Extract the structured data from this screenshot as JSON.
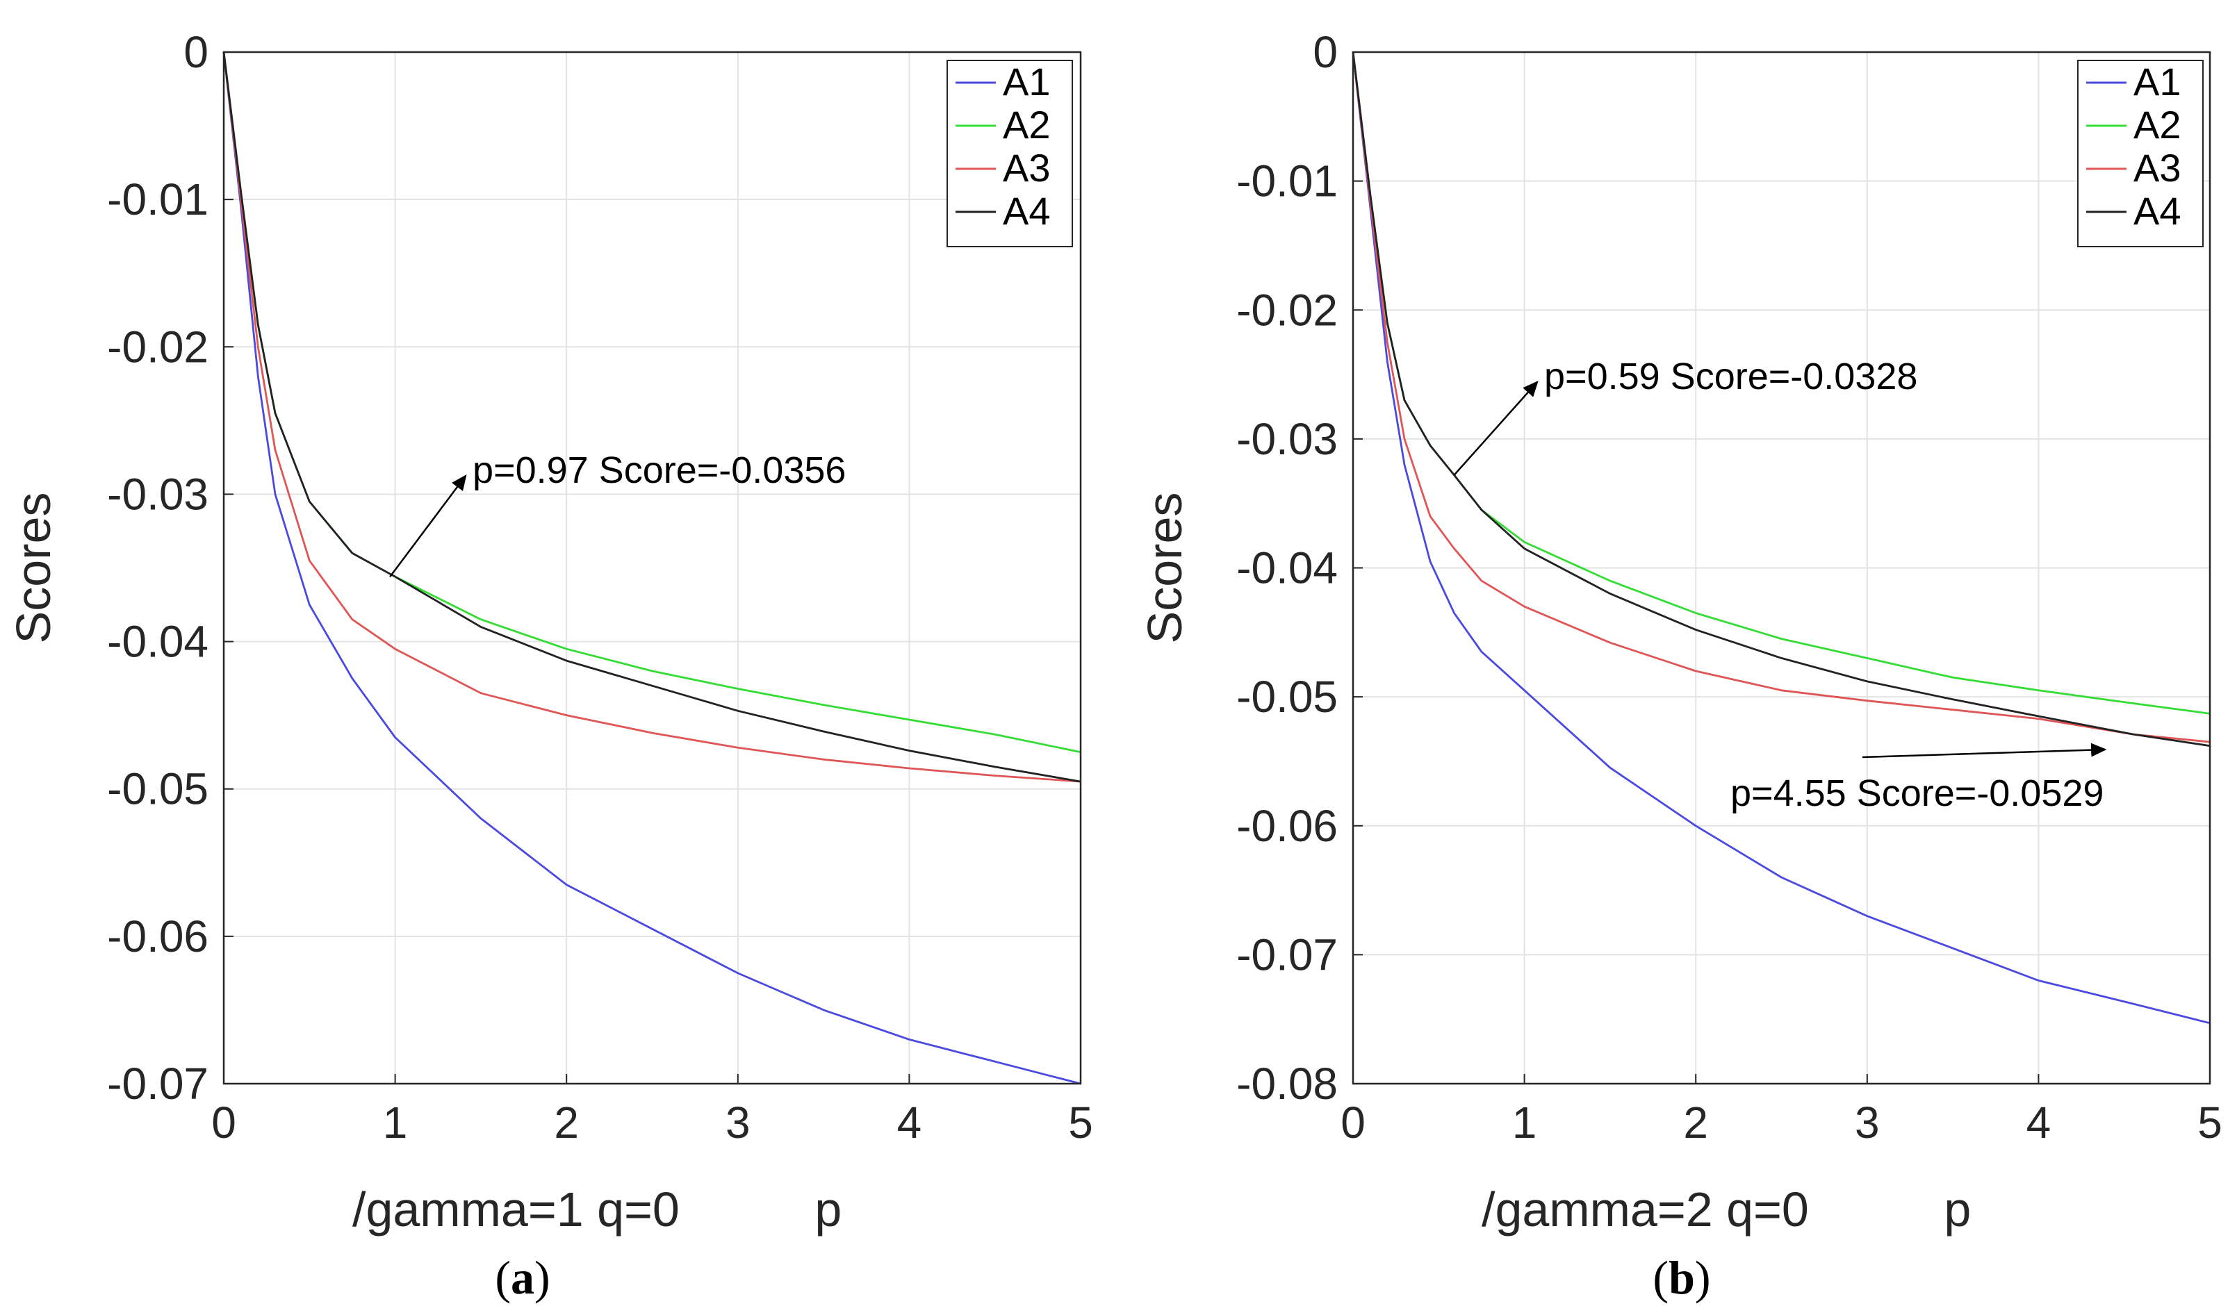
{
  "chart_data": [
    {
      "type": "line",
      "panel_label": "a",
      "xlabel": "/gamma=1 q=0          p",
      "ylabel": "Scores",
      "xlim": [
        0,
        5
      ],
      "ylim": [
        -0.07,
        0
      ],
      "xticks": [
        0,
        1,
        2,
        3,
        4,
        5
      ],
      "yticks": [
        0,
        -0.01,
        -0.02,
        -0.03,
        -0.04,
        -0.05,
        -0.06,
        -0.07
      ],
      "xtick_labels": [
        "0",
        "1",
        "2",
        "3",
        "4",
        "5"
      ],
      "ytick_labels": [
        "0",
        "-0.01",
        "-0.02",
        "-0.03",
        "-0.04",
        "-0.05",
        "-0.06",
        "-0.07"
      ],
      "grid": true,
      "legend_position": "top-right",
      "x": [
        0,
        0.1,
        0.2,
        0.3,
        0.5,
        0.75,
        1,
        1.5,
        2,
        2.5,
        3,
        3.5,
        4,
        4.5,
        5
      ],
      "series": [
        {
          "name": "A1",
          "color": "#4a4ae0",
          "values": [
            0,
            -0.0105,
            -0.022,
            -0.03,
            -0.0375,
            -0.0425,
            -0.0465,
            -0.052,
            -0.0565,
            -0.0595,
            -0.0625,
            -0.065,
            -0.067,
            -0.0685,
            -0.07
          ]
        },
        {
          "name": "A2",
          "color": "#33dd33",
          "values": [
            0,
            -0.0095,
            -0.0185,
            -0.0245,
            -0.0305,
            -0.034,
            -0.0356,
            -0.0385,
            -0.0405,
            -0.042,
            -0.0432,
            -0.0443,
            -0.0453,
            -0.0463,
            -0.0475
          ]
        },
        {
          "name": "A3",
          "color": "#e05555",
          "values": [
            0,
            -0.01,
            -0.02,
            -0.027,
            -0.0345,
            -0.0385,
            -0.0405,
            -0.0435,
            -0.045,
            -0.0462,
            -0.0472,
            -0.048,
            -0.0486,
            -0.0491,
            -0.0495
          ]
        },
        {
          "name": "A4",
          "color": "#222222",
          "values": [
            0,
            -0.0095,
            -0.0185,
            -0.0245,
            -0.0305,
            -0.034,
            -0.0356,
            -0.039,
            -0.0413,
            -0.043,
            -0.0447,
            -0.0461,
            -0.0474,
            -0.0485,
            -0.0495
          ]
        }
      ],
      "annotations": [
        {
          "text": "p=0.97 Score=-0.0356",
          "x": 0.97,
          "y": -0.0356
        }
      ]
    },
    {
      "type": "line",
      "panel_label": "b",
      "xlabel": "/gamma=2 q=0          p",
      "ylabel": "Scores",
      "xlim": [
        0,
        5
      ],
      "ylim": [
        -0.08,
        0
      ],
      "xticks": [
        0,
        1,
        2,
        3,
        4,
        5
      ],
      "yticks": [
        0,
        -0.01,
        -0.02,
        -0.03,
        -0.04,
        -0.05,
        -0.06,
        -0.07,
        -0.08
      ],
      "xtick_labels": [
        "0",
        "1",
        "2",
        "3",
        "4",
        "5"
      ],
      "ytick_labels": [
        "0",
        "-0.01",
        "-0.02",
        "-0.03",
        "-0.04",
        "-0.05",
        "-0.06",
        "-0.07",
        "-0.08"
      ],
      "grid": true,
      "legend_position": "top-right",
      "x": [
        0,
        0.1,
        0.2,
        0.3,
        0.45,
        0.59,
        0.75,
        1,
        1.5,
        2,
        2.5,
        3,
        3.5,
        4,
        4.55,
        5
      ],
      "series": [
        {
          "name": "A1",
          "color": "#4a4ae0",
          "values": [
            0,
            -0.012,
            -0.024,
            -0.032,
            -0.0395,
            -0.0435,
            -0.0465,
            -0.0495,
            -0.0555,
            -0.06,
            -0.064,
            -0.067,
            -0.0695,
            -0.072,
            -0.0738,
            -0.0753
          ]
        },
        {
          "name": "A2",
          "color": "#33dd33",
          "values": [
            0,
            -0.011,
            -0.021,
            -0.027,
            -0.0305,
            -0.0328,
            -0.0355,
            -0.038,
            -0.041,
            -0.0435,
            -0.0455,
            -0.047,
            -0.0485,
            -0.0495,
            -0.0505,
            -0.0513
          ]
        },
        {
          "name": "A3",
          "color": "#e05555",
          "values": [
            0,
            -0.0115,
            -0.0225,
            -0.03,
            -0.036,
            -0.0385,
            -0.041,
            -0.043,
            -0.0458,
            -0.048,
            -0.0495,
            -0.0503,
            -0.051,
            -0.0517,
            -0.0529,
            -0.0535
          ]
        },
        {
          "name": "A4",
          "color": "#222222",
          "values": [
            0,
            -0.011,
            -0.021,
            -0.027,
            -0.0305,
            -0.0328,
            -0.0355,
            -0.0385,
            -0.042,
            -0.0448,
            -0.047,
            -0.0488,
            -0.0502,
            -0.0515,
            -0.0529,
            -0.0538
          ]
        }
      ],
      "annotations": [
        {
          "text": "p=0.59 Score=-0.0328",
          "x": 0.59,
          "y": -0.0328
        },
        {
          "text": "p=4.55 Score=-0.0529",
          "x": 4.55,
          "y": -0.0529
        }
      ]
    }
  ]
}
